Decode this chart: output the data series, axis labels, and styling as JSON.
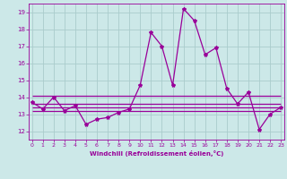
{
  "x": [
    0,
    1,
    2,
    3,
    4,
    5,
    6,
    7,
    8,
    9,
    10,
    11,
    12,
    13,
    14,
    15,
    16,
    17,
    18,
    19,
    20,
    21,
    22,
    23
  ],
  "windchill": [
    13.7,
    13.3,
    14.0,
    13.2,
    13.5,
    12.4,
    12.7,
    12.8,
    13.1,
    13.3,
    14.7,
    17.8,
    17.0,
    14.7,
    19.2,
    18.5,
    16.5,
    16.9,
    14.5,
    13.6,
    14.3,
    12.1,
    13.0,
    13.4
  ],
  "hlines": [
    14.1,
    13.6,
    13.4,
    13.2
  ],
  "ylim": [
    11.5,
    19.5
  ],
  "yticks": [
    12,
    13,
    14,
    15,
    16,
    17,
    18,
    19
  ],
  "xticks": [
    0,
    1,
    2,
    3,
    4,
    5,
    6,
    7,
    8,
    9,
    10,
    11,
    12,
    13,
    14,
    15,
    16,
    17,
    18,
    19,
    20,
    21,
    22,
    23
  ],
  "xlabel": "Windchill (Refroidissement éolien,°C)",
  "line_color": "#990099",
  "bg_color": "#cce8e8",
  "grid_color": "#aacccc",
  "marker": "*",
  "marker_size": 3,
  "line_width": 0.9,
  "tick_labelsize": 4.5,
  "xlabel_fontsize": 5.0,
  "ytick_labelsize": 5.0
}
